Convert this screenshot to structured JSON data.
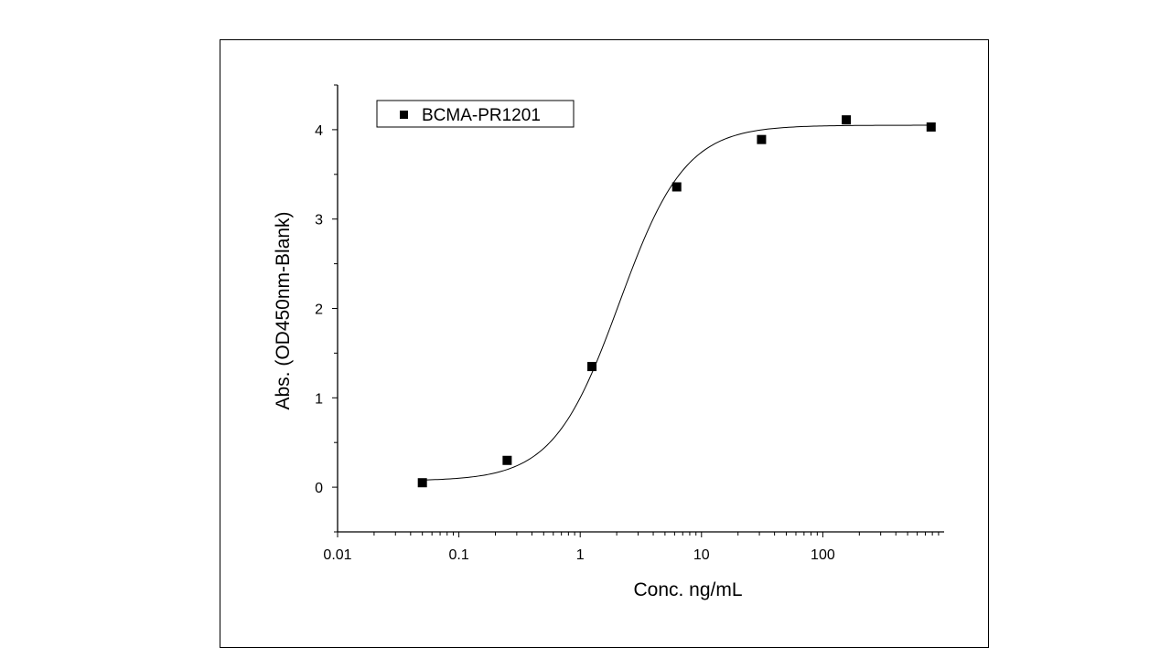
{
  "chart_data": {
    "type": "scatter",
    "xscale": "log",
    "xlabel": "Conc. ng/mL",
    "ylabel": "Abs. (OD450nm-Blank)",
    "xlim": [
      0.01,
      1000
    ],
    "ylim": [
      -0.5,
      4.5
    ],
    "xticks": [
      0.01,
      0.1,
      1,
      10,
      100
    ],
    "xtick_labels": [
      "0.01",
      "0.1",
      "1",
      "10",
      "100"
    ],
    "yticks": [
      0,
      1,
      2,
      3,
      4
    ],
    "ytick_labels": [
      "0",
      "1",
      "2",
      "3",
      "4"
    ],
    "legend_position": "top-left",
    "series": [
      {
        "name": "BCMA-PR1201",
        "marker": "square",
        "x": [
          0.05,
          0.25,
          1.25,
          6.25,
          31.25,
          156.25,
          781.25
        ],
        "y": [
          0.05,
          0.3,
          1.35,
          3.36,
          3.89,
          4.11,
          4.03
        ]
      }
    ],
    "fit": {
      "model": "4PL",
      "bottom": 0.07,
      "top": 4.05,
      "ec50": 2.1,
      "hill": 1.6
    }
  }
}
